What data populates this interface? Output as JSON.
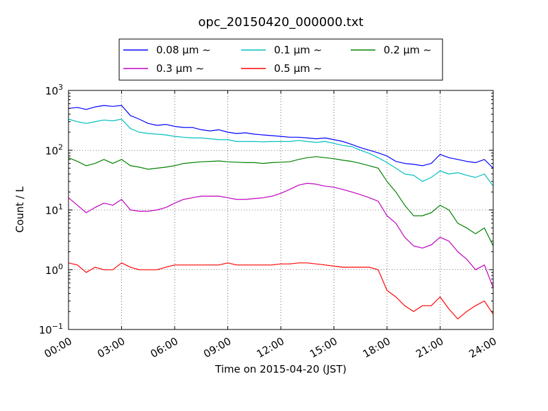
{
  "chart_data": {
    "type": "line",
    "title": "opc_20150420_000000.txt",
    "xlabel": "Time on 2015-04-20 (JST)",
    "ylabel": "Count / L",
    "yscale": "log",
    "ylim": [
      0.1,
      1000
    ],
    "xlim_hours": [
      0,
      24
    ],
    "grid": true,
    "legend_position": "top-center",
    "x_ticks": [
      "00:00",
      "03:00",
      "06:00",
      "09:00",
      "12:00",
      "15:00",
      "18:00",
      "21:00",
      "24:00"
    ],
    "y_ticks": [
      {
        "value": 0.1,
        "base": "10",
        "exp": "−1"
      },
      {
        "value": 1,
        "base": "10",
        "exp": "0"
      },
      {
        "value": 10,
        "base": "10",
        "exp": "1"
      },
      {
        "value": 100,
        "base": "10",
        "exp": "2"
      },
      {
        "value": 1000,
        "base": "10",
        "exp": "3"
      }
    ],
    "x_hours": [
      0,
      0.5,
      1,
      1.5,
      2,
      2.5,
      3,
      3.5,
      4,
      4.5,
      5,
      5.5,
      6,
      6.5,
      7,
      7.5,
      8,
      8.5,
      9,
      9.5,
      10,
      10.5,
      11,
      11.5,
      12,
      12.5,
      13,
      13.5,
      14,
      14.5,
      15,
      15.5,
      16,
      16.5,
      17,
      17.5,
      18,
      18.5,
      19,
      19.5,
      20,
      20.5,
      21,
      21.5,
      22,
      22.5,
      23,
      23.5,
      24
    ],
    "series": [
      {
        "name": "0.08 μm ∼",
        "color": "#0000ff",
        "values": [
          500,
          520,
          480,
          530,
          560,
          540,
          560,
          380,
          330,
          280,
          260,
          270,
          250,
          240,
          240,
          220,
          210,
          220,
          200,
          190,
          195,
          185,
          180,
          175,
          170,
          165,
          165,
          160,
          155,
          160,
          150,
          140,
          125,
          110,
          100,
          90,
          80,
          65,
          60,
          58,
          55,
          60,
          85,
          75,
          70,
          65,
          62,
          70,
          50
        ]
      },
      {
        "name": "0.1 μm ∼",
        "color": "#00bfbf",
        "values": [
          330,
          300,
          280,
          300,
          320,
          310,
          330,
          230,
          200,
          190,
          185,
          180,
          170,
          165,
          160,
          160,
          155,
          150,
          150,
          140,
          140,
          140,
          138,
          140,
          140,
          140,
          145,
          140,
          135,
          140,
          130,
          120,
          115,
          100,
          88,
          75,
          62,
          50,
          40,
          38,
          30,
          35,
          45,
          40,
          42,
          38,
          35,
          40,
          25
        ]
      },
      {
        "name": "0.2 μm ∼",
        "color": "#008000",
        "values": [
          75,
          65,
          55,
          60,
          70,
          60,
          70,
          55,
          52,
          48,
          50,
          52,
          55,
          60,
          62,
          64,
          65,
          66,
          64,
          63,
          62,
          62,
          60,
          62,
          63,
          64,
          70,
          75,
          78,
          75,
          72,
          68,
          65,
          60,
          55,
          50,
          30,
          20,
          12,
          8,
          8,
          9,
          12,
          10,
          6,
          5,
          4,
          5,
          2.5
        ]
      },
      {
        "name": "0.3 μm ∼",
        "color": "#bf00bf",
        "values": [
          16,
          12,
          9,
          11,
          13,
          12,
          15,
          10,
          9.5,
          9.5,
          10,
          11,
          13,
          15,
          16,
          17,
          17,
          17,
          16,
          15,
          15,
          15.5,
          16,
          17,
          19,
          22,
          26,
          28,
          27,
          25,
          24,
          22,
          20,
          18,
          16,
          14,
          8,
          6,
          3.5,
          2.5,
          2.3,
          2.6,
          3.5,
          3,
          2,
          1.5,
          1,
          1.2,
          0.5
        ]
      },
      {
        "name": "0.5 μm ∼",
        "color": "#ff0000",
        "values": [
          1.3,
          1.2,
          0.9,
          1.1,
          1.0,
          1.0,
          1.3,
          1.1,
          1.0,
          1.0,
          1.0,
          1.1,
          1.2,
          1.2,
          1.2,
          1.2,
          1.2,
          1.2,
          1.3,
          1.2,
          1.2,
          1.2,
          1.2,
          1.2,
          1.25,
          1.25,
          1.3,
          1.3,
          1.25,
          1.2,
          1.15,
          1.1,
          1.1,
          1.1,
          1.1,
          1.0,
          0.45,
          0.35,
          0.25,
          0.2,
          0.25,
          0.25,
          0.35,
          0.22,
          0.15,
          0.2,
          0.25,
          0.3,
          0.18
        ]
      }
    ]
  }
}
